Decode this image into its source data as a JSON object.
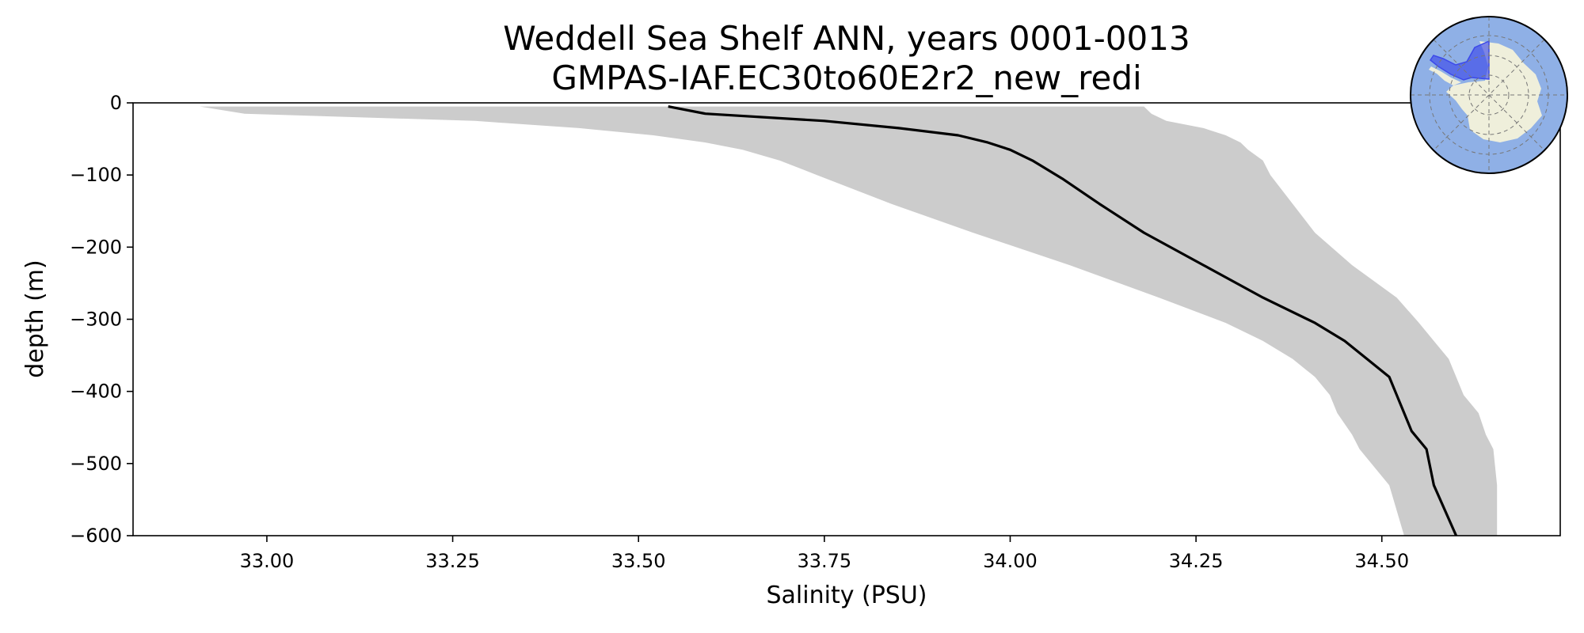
{
  "chart_data": {
    "type": "line",
    "title": "Weddell Sea Shelf ANN, years 0001-0013",
    "subtitle": "GMPAS-IAF.EC30to60E2r2_new_redi",
    "xlabel": "Salinity (PSU)",
    "ylabel": "depth (m)",
    "xlim": [
      32.82,
      34.74
    ],
    "ylim": [
      -600,
      0
    ],
    "xticks": [
      33.0,
      33.25,
      33.5,
      33.75,
      34.0,
      34.25,
      34.5
    ],
    "xtick_labels": [
      "33.00",
      "33.25",
      "33.50",
      "33.75",
      "34.00",
      "34.25",
      "34.50"
    ],
    "yticks": [
      0,
      -100,
      -200,
      -300,
      -400,
      -500,
      -600
    ],
    "ytick_labels": [
      "0",
      "−100",
      "−200",
      "−300",
      "−400",
      "−500",
      "−600"
    ],
    "grid": false,
    "series": [
      {
        "line_color": "#000000",
        "x": [
          33.54,
          33.59,
          33.75,
          33.85,
          33.93,
          33.97,
          34.0,
          34.03,
          34.07,
          34.12,
          34.18,
          34.26,
          34.34,
          34.41,
          34.45,
          34.48,
          34.51,
          34.52,
          34.53,
          34.54,
          34.56,
          34.57,
          34.6
        ],
        "y": [
          -5,
          -15,
          -25,
          -35,
          -45,
          -55,
          -65,
          -80,
          -105,
          -140,
          -180,
          -225,
          -270,
          -305,
          -330,
          -355,
          -380,
          -405,
          -430,
          -455,
          -480,
          -530,
          -600
        ]
      }
    ],
    "band": {
      "fill_color": "#cccccc",
      "depth": [
        -5,
        -15,
        -25,
        -35,
        -45,
        -55,
        -65,
        -80,
        -100,
        -140,
        -180,
        -225,
        -270,
        -305,
        -330,
        -355,
        -380,
        -405,
        -430,
        -460,
        -480,
        -530,
        -600
      ],
      "lower": [
        32.91,
        32.97,
        33.28,
        33.42,
        33.52,
        33.59,
        33.64,
        33.69,
        33.74,
        33.84,
        33.95,
        34.08,
        34.2,
        34.29,
        34.34,
        34.38,
        34.41,
        34.43,
        34.44,
        34.46,
        34.47,
        34.51,
        34.53
      ],
      "upper": [
        34.18,
        34.19,
        34.21,
        34.26,
        34.29,
        34.31,
        34.32,
        34.34,
        34.35,
        34.38,
        34.41,
        34.46,
        34.52,
        34.55,
        34.57,
        34.59,
        34.6,
        34.61,
        34.63,
        34.64,
        34.65,
        34.655,
        34.655
      ]
    }
  },
  "inset_map": {
    "ocean_color": "#8fb0e6",
    "land_color": "#efefdb",
    "region_color": "#3c49ea"
  }
}
